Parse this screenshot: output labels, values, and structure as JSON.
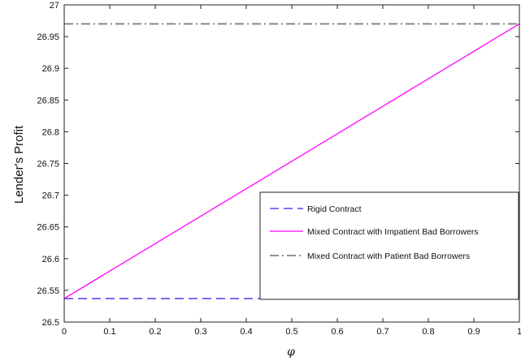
{
  "chart_data": {
    "type": "line",
    "title": "",
    "xlabel": "φ",
    "ylabel": "Lender's Profit",
    "xlim": [
      0,
      1
    ],
    "ylim": [
      26.5,
      27
    ],
    "x_ticks": [
      0,
      0.1,
      0.2,
      0.3,
      0.4,
      0.5,
      0.6,
      0.7,
      0.8,
      0.9,
      1
    ],
    "x_tick_labels": [
      "0",
      "0.1",
      "0.2",
      "0.3",
      "0.4",
      "0.5",
      "0.6",
      "0.7",
      "0.8",
      "0.9",
      "1"
    ],
    "y_ticks": [
      26.5,
      26.55,
      26.6,
      26.65,
      26.7,
      26.75,
      26.8,
      26.85,
      26.9,
      26.95,
      27
    ],
    "y_tick_labels": [
      "26.5",
      "26.55",
      "26.6",
      "26.65",
      "26.7",
      "26.75",
      "26.8",
      "26.85",
      "26.9",
      "26.95",
      "27"
    ],
    "grid": false,
    "legend_position": "lower-right",
    "series": [
      {
        "name": "Rigid Contract",
        "x": [
          0,
          1
        ],
        "y": [
          26.537,
          26.537
        ],
        "color": "#7f5af0",
        "dash": "dashed"
      },
      {
        "name": "Mixed Contract with Impatient Bad Borrowers",
        "x": [
          0,
          1
        ],
        "y": [
          26.537,
          26.97
        ],
        "color": "#ff00ff",
        "dash": "solid"
      },
      {
        "name": "Mixed Contract with Patient Bad Borrowers",
        "x": [
          0,
          1
        ],
        "y": [
          26.97,
          26.97
        ],
        "color": "#808080",
        "dash": "dashdot"
      }
    ]
  }
}
